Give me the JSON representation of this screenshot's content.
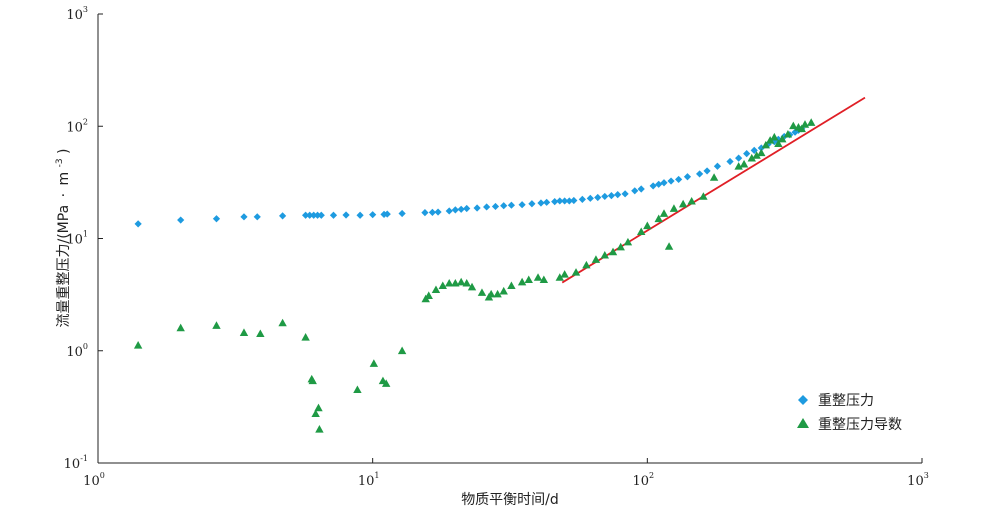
{
  "chart_data": {
    "type": "scatter",
    "x_scale": "log",
    "y_scale": "log",
    "xlim": [
      1,
      1000
    ],
    "ylim": [
      0.1,
      1000
    ],
    "xlabel": "物质平衡时间/d",
    "ylabel": "流量重整压力/(MPa·m⁻³)",
    "ylabel_parts": [
      "流量重整压力/(MPa",
      "·",
      "m",
      "-3",
      ")"
    ],
    "x_ticks": [
      {
        "base": "10",
        "exp": "0"
      },
      {
        "base": "10",
        "exp": "1"
      },
      {
        "base": "10",
        "exp": "2"
      },
      {
        "base": "10",
        "exp": "3"
      }
    ],
    "y_ticks": [
      {
        "base": "10",
        "exp": "-1"
      },
      {
        "base": "10",
        "exp": "0"
      },
      {
        "base": "10",
        "exp": "1"
      },
      {
        "base": "10",
        "exp": "2"
      },
      {
        "base": "10",
        "exp": "3"
      }
    ],
    "legend_position": "bottom-right",
    "grid": false,
    "series": [
      {
        "name": "重整压力",
        "marker": "diamond",
        "color": "#1e9be0",
        "points": [
          [
            1.4,
            13.5
          ],
          [
            2.0,
            14.6
          ],
          [
            2.7,
            15.0
          ],
          [
            3.4,
            15.6
          ],
          [
            3.8,
            15.6
          ],
          [
            4.7,
            15.9
          ],
          [
            5.7,
            16.1
          ],
          [
            5.9,
            16.1
          ],
          [
            6.1,
            16.1
          ],
          [
            6.3,
            16.1
          ],
          [
            6.5,
            16.1
          ],
          [
            7.2,
            16.1
          ],
          [
            8.0,
            16.2
          ],
          [
            9.0,
            16.1
          ],
          [
            10.0,
            16.3
          ],
          [
            11.0,
            16.4
          ],
          [
            11.3,
            16.5
          ],
          [
            12.8,
            16.7
          ],
          [
            15.5,
            17.0
          ],
          [
            16.5,
            17.1
          ],
          [
            17.3,
            17.2
          ],
          [
            19.0,
            17.6
          ],
          [
            20.0,
            18.0
          ],
          [
            21.0,
            18.2
          ],
          [
            22.0,
            18.5
          ],
          [
            24.0,
            18.7
          ],
          [
            26.0,
            19.1
          ],
          [
            28.0,
            19.3
          ],
          [
            30.0,
            19.6
          ],
          [
            32.0,
            19.8
          ],
          [
            35.0,
            20.0
          ],
          [
            38.0,
            20.4
          ],
          [
            41.0,
            20.7
          ],
          [
            43.0,
            21.0
          ],
          [
            46.0,
            21.3
          ],
          [
            48.0,
            21.6
          ],
          [
            50.0,
            21.6
          ],
          [
            52.0,
            21.6
          ],
          [
            54.0,
            21.8
          ],
          [
            58.0,
            22.3
          ],
          [
            62.0,
            22.8
          ],
          [
            66.0,
            23.2
          ],
          [
            70.0,
            23.7
          ],
          [
            74.0,
            24.1
          ],
          [
            78.0,
            24.6
          ],
          [
            83.0,
            25.0
          ],
          [
            90.0,
            26.6
          ],
          [
            95.0,
            27.6
          ],
          [
            105.0,
            29.4
          ],
          [
            110.0,
            30.4
          ],
          [
            115.0,
            31.4
          ],
          [
            122.0,
            32.5
          ],
          [
            130.0,
            33.6
          ],
          [
            140.0,
            35.5
          ],
          [
            155.0,
            37.6
          ],
          [
            165.0,
            40.0
          ],
          [
            180.0,
            44.0
          ],
          [
            200.0,
            48.5
          ],
          [
            215.0,
            52.0
          ],
          [
            230.0,
            57.0
          ],
          [
            245.0,
            61.0
          ],
          [
            260.0,
            64.0
          ],
          [
            275.0,
            69.0
          ],
          [
            290.0,
            73.0
          ],
          [
            300.0,
            76.5
          ],
          [
            315.0,
            81.0
          ],
          [
            330.0,
            84.0
          ],
          [
            345.0,
            88.5
          ],
          [
            355.0,
            92.0
          ],
          [
            365.0,
            95.0
          ]
        ]
      },
      {
        "name": "重整压力导数",
        "marker": "triangle",
        "color": "#1f9a45",
        "points": [
          [
            1.4,
            1.12
          ],
          [
            2.0,
            1.6
          ],
          [
            2.7,
            1.68
          ],
          [
            3.4,
            1.45
          ],
          [
            3.9,
            1.42
          ],
          [
            4.7,
            1.77
          ],
          [
            5.7,
            1.32
          ],
          [
            6.0,
            0.56
          ],
          [
            6.05,
            0.54
          ],
          [
            6.2,
            0.275
          ],
          [
            6.35,
            0.31
          ],
          [
            6.4,
            0.2
          ],
          [
            8.8,
            0.45
          ],
          [
            10.1,
            0.77
          ],
          [
            10.9,
            0.54
          ],
          [
            11.2,
            0.51
          ],
          [
            12.8,
            1.0
          ],
          [
            15.6,
            2.9
          ],
          [
            16.0,
            3.1
          ],
          [
            17.0,
            3.5
          ],
          [
            18.0,
            3.8
          ],
          [
            19.0,
            4.0
          ],
          [
            20.0,
            4.0
          ],
          [
            21.0,
            4.1
          ],
          [
            22.0,
            4.0
          ],
          [
            23.0,
            3.7
          ],
          [
            25.0,
            3.3
          ],
          [
            26.5,
            3.0
          ],
          [
            27.0,
            3.2
          ],
          [
            28.5,
            3.2
          ],
          [
            30.0,
            3.4
          ],
          [
            32.0,
            3.8
          ],
          [
            35.0,
            4.1
          ],
          [
            37.0,
            4.3
          ],
          [
            40.0,
            4.5
          ],
          [
            42.0,
            4.3
          ],
          [
            48.0,
            4.5
          ],
          [
            50.0,
            4.8
          ],
          [
            55.0,
            5.0
          ],
          [
            60.0,
            5.8
          ],
          [
            65.0,
            6.5
          ],
          [
            70.0,
            7.1
          ],
          [
            75.0,
            7.6
          ],
          [
            80.0,
            8.4
          ],
          [
            85.0,
            9.3
          ],
          [
            95.0,
            11.5
          ],
          [
            100.0,
            13.0
          ],
          [
            110.0,
            15.0
          ],
          [
            115.0,
            16.7
          ],
          [
            120.0,
            8.5
          ],
          [
            125.0,
            18.5
          ],
          [
            135.0,
            20.3
          ],
          [
            145.0,
            21.5
          ],
          [
            160.0,
            23.7
          ],
          [
            175.0,
            35.0
          ],
          [
            215.0,
            44.0
          ],
          [
            225.0,
            46.0
          ],
          [
            240.0,
            52.0
          ],
          [
            250.0,
            55.0
          ],
          [
            260.0,
            58.0
          ],
          [
            270.0,
            68.0
          ],
          [
            280.0,
            75.0
          ],
          [
            290.0,
            80.0
          ],
          [
            300.0,
            70.0
          ],
          [
            310.0,
            77.0
          ],
          [
            325.0,
            85.0
          ],
          [
            340.0,
            101.0
          ],
          [
            355.0,
            98.0
          ],
          [
            365.0,
            95.0
          ],
          [
            375.0,
            104.0
          ],
          [
            395.0,
            108.0
          ]
        ]
      }
    ],
    "fit_line": {
      "color": "#e01f26",
      "x": [
        49,
        620
      ],
      "y": [
        4.05,
        180.0
      ]
    }
  }
}
